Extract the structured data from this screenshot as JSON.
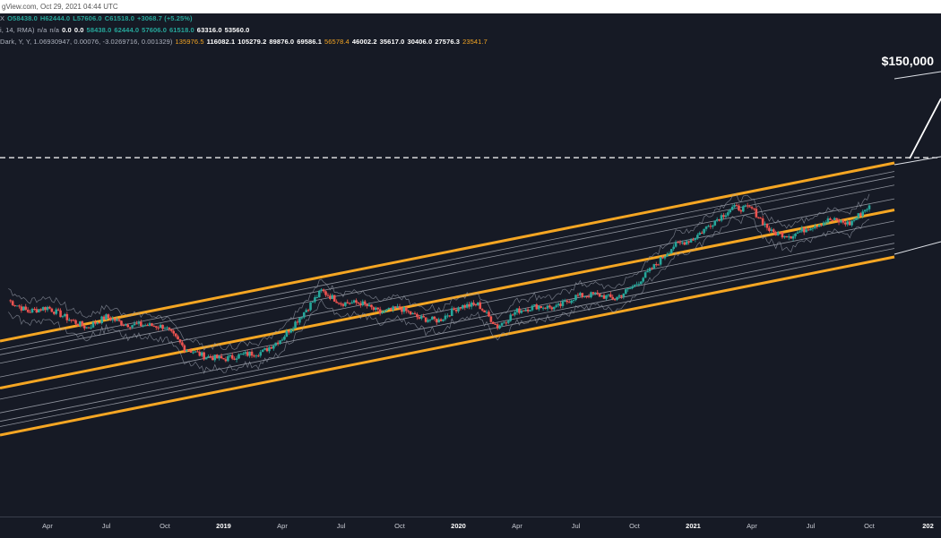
{
  "header": {
    "source_line": "gView.com, Oct 29, 2021 04:44 UTC"
  },
  "info_rows": [
    [
      {
        "t": "X",
        "c": "dim"
      },
      {
        "t": "O58438.0",
        "c": "g"
      },
      {
        "t": "H62444.0",
        "c": "g"
      },
      {
        "t": "L57606.0",
        "c": "g"
      },
      {
        "t": "C61518.0",
        "c": "g"
      },
      {
        "t": "+3068.7 (+5.25%)",
        "c": "g"
      }
    ],
    [
      {
        "t": "i, 14, RMA)",
        "c": "dim"
      },
      {
        "t": "n/a",
        "c": "dim"
      },
      {
        "t": "n/a",
        "c": "dim"
      },
      {
        "t": "0.0",
        "c": "w"
      },
      {
        "t": "0.0",
        "c": "w"
      },
      {
        "t": "58438.0",
        "c": "g"
      },
      {
        "t": "62444.0",
        "c": "g"
      },
      {
        "t": "57606.0",
        "c": "g"
      },
      {
        "t": "61518.0",
        "c": "g"
      },
      {
        "t": "63316.0",
        "c": "w"
      },
      {
        "t": "53560.0",
        "c": "w"
      }
    ],
    [
      {
        "t": "Dark, Y, Y, 1.06930947, 0.00076, -3.0269716, 0.001329)",
        "c": "dim"
      },
      {
        "t": "135976.5",
        "c": "o"
      },
      {
        "t": "116082.1",
        "c": "w"
      },
      {
        "t": "105279.2",
        "c": "w"
      },
      {
        "t": "89876.0",
        "c": "w"
      },
      {
        "t": "69586.1",
        "c": "w"
      },
      {
        "t": "56578.4",
        "c": "o"
      },
      {
        "t": "46002.2",
        "c": "w"
      },
      {
        "t": "35617.0",
        "c": "w"
      },
      {
        "t": "30406.0",
        "c": "w"
      },
      {
        "t": "27576.3",
        "c": "w"
      },
      {
        "t": "23541.7",
        "c": "o"
      }
    ]
  ],
  "price_label": "$150,000",
  "colors": {
    "background": "#161a25",
    "channel_orange": "#f5a623",
    "channel_grey": "#b8bcc6",
    "candle_up": "#26a69a",
    "candle_down": "#ef5350",
    "envelope": "#9aa0ad"
  },
  "chart_data": {
    "type": "line",
    "description_series": "BTC price with logarithmic regression channel bands",
    "x_tick_labels": [
      "Apr",
      "Jul",
      "Oct",
      "2019",
      "Apr",
      "Jul",
      "Oct",
      "2020",
      "Apr",
      "Jul",
      "Oct",
      "2021",
      "Apr",
      "Jul",
      "Oct",
      "202"
    ],
    "x_ticks_year": [
      false,
      false,
      false,
      true,
      false,
      false,
      false,
      true,
      false,
      false,
      false,
      true,
      false,
      false,
      false,
      true
    ],
    "x_tick_months": [
      "2018-04",
      "2018-07",
      "2018-10",
      "2019-01",
      "2019-04",
      "2019-07",
      "2019-10",
      "2020-01",
      "2020-04",
      "2020-07",
      "2020-10",
      "2021-01",
      "2021-04",
      "2021-07",
      "2021-10",
      "2022-01"
    ],
    "y_scale": "log",
    "horizontal_line": 150000,
    "price_series": [
      [
        "2018-02",
        10500
      ],
      [
        "2018-03",
        8500
      ],
      [
        "2018-04",
        9200
      ],
      [
        "2018-05",
        7500
      ],
      [
        "2018-06",
        6300
      ],
      [
        "2018-07",
        7700
      ],
      [
        "2018-08",
        6700
      ],
      [
        "2018-09",
        6600
      ],
      [
        "2018-10",
        6400
      ],
      [
        "2018-11",
        4300
      ],
      [
        "2018-12",
        3700
      ],
      [
        "2019-01",
        3500
      ],
      [
        "2019-02",
        3800
      ],
      [
        "2019-03",
        4000
      ],
      [
        "2019-04",
        5200
      ],
      [
        "2019-05",
        8000
      ],
      [
        "2019-06",
        12500
      ],
      [
        "2019-07",
        10000
      ],
      [
        "2019-08",
        10000
      ],
      [
        "2019-09",
        8300
      ],
      [
        "2019-10",
        9100
      ],
      [
        "2019-11",
        7500
      ],
      [
        "2019-12",
        7200
      ],
      [
        "2020-01",
        9300
      ],
      [
        "2020-02",
        9700
      ],
      [
        "2020-03",
        6400
      ],
      [
        "2020-04",
        8600
      ],
      [
        "2020-05",
        9400
      ],
      [
        "2020-06",
        9100
      ],
      [
        "2020-07",
        11300
      ],
      [
        "2020-08",
        11700
      ],
      [
        "2020-09",
        10800
      ],
      [
        "2020-10",
        13800
      ],
      [
        "2020-11",
        19700
      ],
      [
        "2020-12",
        29000
      ],
      [
        "2021-01",
        33100
      ],
      [
        "2021-02",
        45000
      ],
      [
        "2021-03",
        58800
      ],
      [
        "2021-04",
        57800
      ],
      [
        "2021-05",
        37300
      ],
      [
        "2021-06",
        35000
      ],
      [
        "2021-07",
        41500
      ],
      [
        "2021-08",
        47100
      ],
      [
        "2021-09",
        43800
      ],
      [
        "2021-10",
        61518
      ]
    ],
    "channel_bands": [
      {
        "value_2021_10": 135976.5,
        "style": "orange"
      },
      {
        "value_2021_10": 116082.1,
        "style": "grey"
      },
      {
        "value_2021_10": 105279.2,
        "style": "grey"
      },
      {
        "value_2021_10": 89876.0,
        "style": "grey"
      },
      {
        "value_2021_10": 69586.1,
        "style": "grey"
      },
      {
        "value_2021_10": 56578.4,
        "style": "orange"
      },
      {
        "value_2021_10": 46002.2,
        "style": "grey"
      },
      {
        "value_2021_10": 35617.0,
        "style": "grey"
      },
      {
        "value_2021_10": 30406.0,
        "style": "grey"
      },
      {
        "value_2021_10": 27576.3,
        "style": "grey"
      },
      {
        "value_2021_10": 23541.7,
        "style": "orange"
      }
    ]
  }
}
